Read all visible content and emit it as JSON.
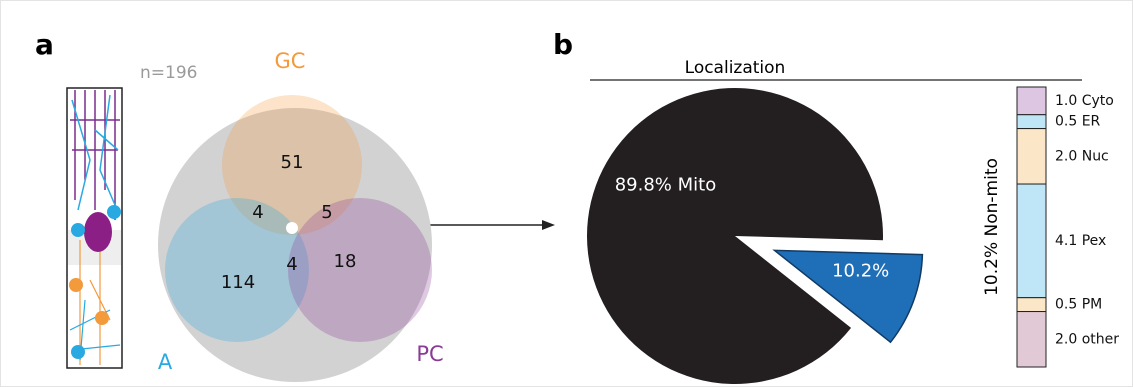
{
  "chart_data": [
    {
      "type": "venn",
      "panel": "a",
      "annotation": "n=196",
      "sets": [
        {
          "name": "GC",
          "color": "#f39a3c"
        },
        {
          "name": "A",
          "color": "#29a9e1"
        },
        {
          "name": "PC",
          "color": "#8b3a96"
        }
      ],
      "values": [
        51,
        4,
        5,
        114,
        4,
        18
      ]
    },
    {
      "type": "pie",
      "panel": "b",
      "title": "Localization",
      "values": [
        89.8,
        10.2
      ],
      "value_labels": [
        "89.8% Mito",
        "10.2%"
      ],
      "colors": [
        "#231f20",
        "#1f6fb8"
      ]
    },
    {
      "type": "stacked-bar",
      "ylabel": "10.2% Non-mito",
      "values": [
        1.0,
        0.5,
        2.0,
        4.1,
        0.5,
        2.0
      ],
      "value_labels": [
        "1.0 Cyto",
        "0.5 ER",
        "2.0 Nuc",
        "4.1 Pex",
        "0.5 PM",
        "2.0 other"
      ],
      "colors": [
        "#dcc6e2",
        "#bfe6f7",
        "#fbe6c8",
        "#bfe6f7",
        "#fbe6c8",
        "#e2c9d6"
      ]
    }
  ]
}
